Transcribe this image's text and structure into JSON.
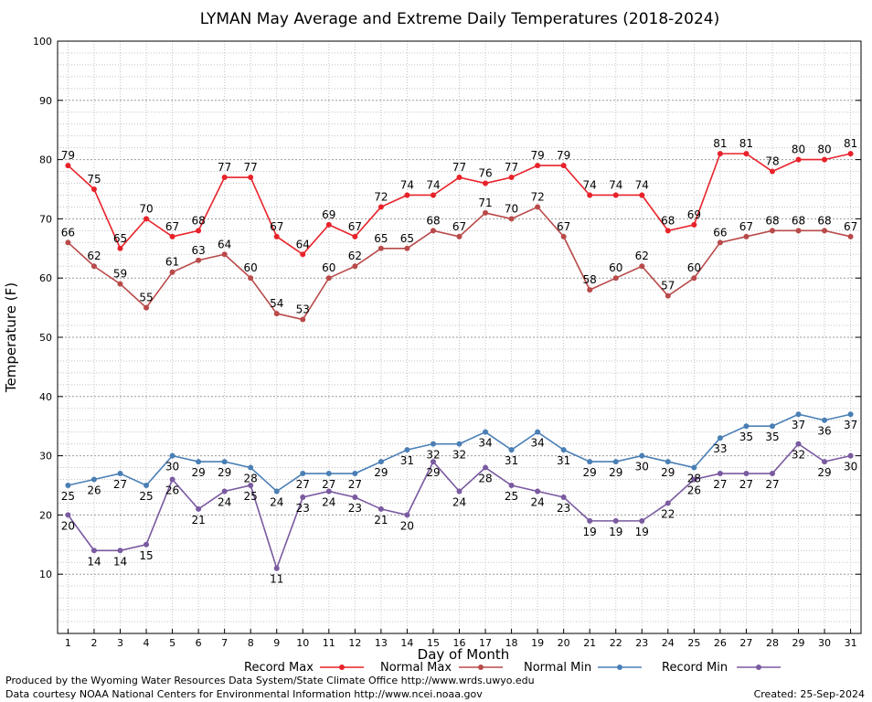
{
  "chart_data": {
    "type": "line",
    "title": "LYMAN May Average and Extreme Daily Temperatures (2018-2024)",
    "xlabel": "Day of Month",
    "ylabel": "Temperature (F)",
    "x": [
      1,
      2,
      3,
      4,
      5,
      6,
      7,
      8,
      9,
      10,
      11,
      12,
      13,
      14,
      15,
      16,
      17,
      18,
      19,
      20,
      21,
      22,
      23,
      24,
      25,
      26,
      27,
      28,
      29,
      30,
      31
    ],
    "xlim": [
      0.6,
      31.4
    ],
    "ylim": [
      0,
      100
    ],
    "yticks": [
      10,
      20,
      30,
      40,
      50,
      60,
      70,
      80,
      90,
      100
    ],
    "grid": true,
    "legend_position": "bottom",
    "series": [
      {
        "name": "Record Max",
        "color": "#e8222a",
        "values": [
          79,
          75,
          65,
          70,
          67,
          68,
          77,
          77,
          67,
          64,
          69,
          67,
          72,
          74,
          74,
          77,
          76,
          77,
          79,
          79,
          74,
          74,
          74,
          68,
          69,
          81,
          81,
          78,
          80,
          80,
          81
        ]
      },
      {
        "name": "Normal Max",
        "color": "#b94a4a",
        "values": [
          66,
          62,
          59,
          55,
          61,
          63,
          64,
          60,
          54,
          53,
          60,
          62,
          65,
          65,
          68,
          67,
          71,
          70,
          72,
          67,
          58,
          60,
          62,
          57,
          60,
          66,
          67,
          68,
          68,
          68,
          67
        ]
      },
      {
        "name": "Normal Min",
        "color": "#4a7fb5",
        "values": [
          25,
          26,
          27,
          25,
          30,
          29,
          29,
          28,
          24,
          27,
          27,
          27,
          29,
          31,
          32,
          32,
          34,
          31,
          34,
          31,
          29,
          29,
          30,
          29,
          28,
          33,
          35,
          35,
          37,
          36,
          37
        ]
      },
      {
        "name": "Record Min",
        "color": "#7a5aa0",
        "values": [
          20,
          14,
          14,
          15,
          26,
          21,
          24,
          25,
          11,
          23,
          24,
          23,
          21,
          20,
          29,
          24,
          28,
          25,
          24,
          23,
          19,
          19,
          19,
          22,
          26,
          27,
          27,
          27,
          32,
          29,
          30
        ]
      }
    ]
  },
  "footer": {
    "line1": "Produced by the Wyoming Water Resources Data System/State Climate Office http://www.wrds.uwyo.edu",
    "line2": "Data courtesy NOAA National Centers for Environmental Information http://www.ncei.noaa.gov",
    "created": "Created:  25-Sep-2024"
  }
}
